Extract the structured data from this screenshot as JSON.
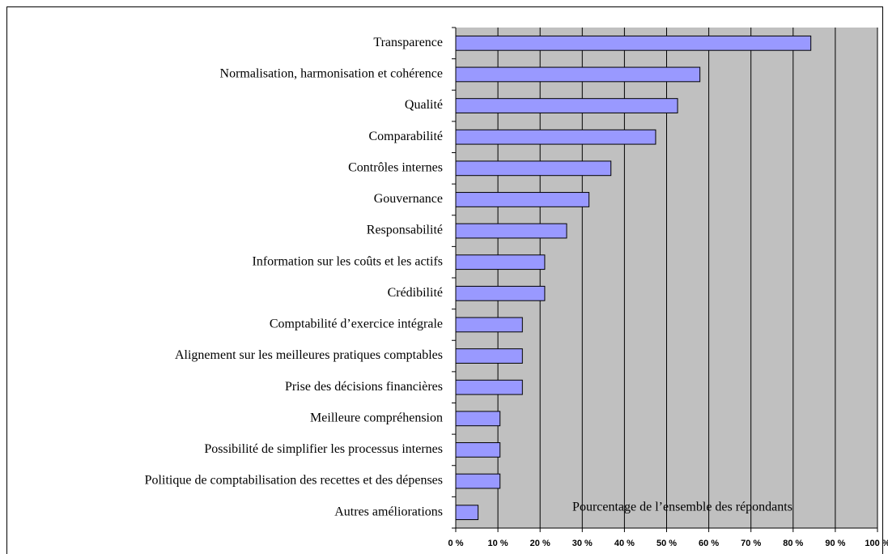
{
  "chart_data": {
    "type": "barh",
    "categories": [
      "Transparence",
      "Normalisation, harmonisation et cohérence",
      "Qualité",
      "Comparabilité",
      "Contrôles internes",
      "Gouvernance",
      "Responsabilité",
      "Information sur les coûts et les actifs",
      "Crédibilité",
      "Comptabilité d’exercice intégrale",
      "Alignement sur les meilleures pratiques comptables",
      "Prise des décisions financières",
      "Meilleure compréhension",
      "Possibilité de simplifier les processus internes",
      "Politique de comptabilisation des recettes et des dépenses",
      "Autres améliorations"
    ],
    "values": [
      84.2,
      57.9,
      52.6,
      47.4,
      36.8,
      31.6,
      26.3,
      21.1,
      21.1,
      15.8,
      15.8,
      15.8,
      10.5,
      10.5,
      10.5,
      5.3
    ],
    "color": "#9999ff",
    "annotation": "Pourcentage de l’ensemble des répondants",
    "xlim": [
      0,
      100
    ],
    "xticks": [
      {
        "value": 0,
        "label": "0 %"
      },
      {
        "value": 10,
        "label": "10 %"
      },
      {
        "value": 20,
        "label": "20 %"
      },
      {
        "value": 30,
        "label": "30 %"
      },
      {
        "value": 40,
        "label": "40 %"
      },
      {
        "value": 50,
        "label": "50 %"
      },
      {
        "value": 60,
        "label": "60 %"
      },
      {
        "value": 70,
        "label": "70 %"
      },
      {
        "value": 80,
        "label": "80 %"
      },
      {
        "value": 90,
        "label": "90 %"
      },
      {
        "value": 100,
        "label": "100 %"
      }
    ],
    "grid": true
  }
}
